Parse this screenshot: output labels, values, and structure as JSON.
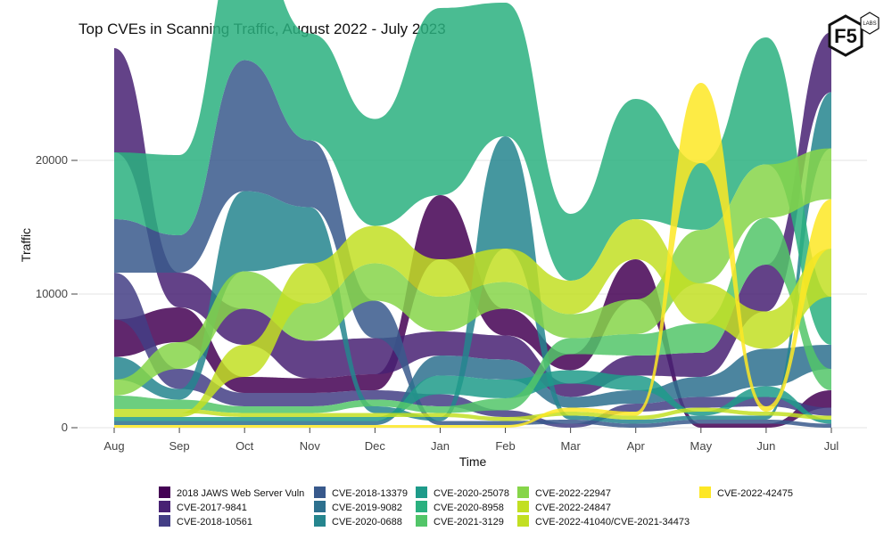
{
  "logo": {
    "brand": "F5",
    "badge": "LABS"
  },
  "chart_data": {
    "type": "area",
    "subtype": "bump-streamgraph",
    "title": "Top CVEs in Scanning Traffic, August 2022 - July 2023",
    "xlabel": "Time",
    "ylabel": "Traffic",
    "categories": [
      "Aug",
      "Sep",
      "Oct",
      "Nov",
      "Dec",
      "Jan",
      "Feb",
      "Mar",
      "Apr",
      "May",
      "Jun",
      "Jul"
    ],
    "ylim": [
      0,
      28000
    ],
    "yticks": [
      0,
      10000,
      20000
    ],
    "ytick_labels": [
      "0",
      "10000",
      "20000"
    ],
    "grid": true,
    "legend_position": "bottom",
    "series": [
      {
        "name": "2018 JAWS Web Server Vuln",
        "color": "#440154",
        "values": [
          2800,
          2600,
          1200,
          1100,
          1200,
          4800,
          2000,
          1200,
          3000,
          300,
          300,
          1300
        ]
      },
      {
        "name": "CVE-2017-9841",
        "color": "#482173",
        "values": [
          7800,
          2600,
          2700,
          2800,
          2700,
          1800,
          1800,
          1000,
          1500,
          1800,
          3500,
          4500
        ]
      },
      {
        "name": "CVE-2018-10561",
        "color": "#433e85",
        "values": [
          3500,
          1500,
          1000,
          1000,
          700,
          900,
          500,
          300,
          600,
          800,
          700,
          600
        ]
      },
      {
        "name": "CVE-2018-13379",
        "color": "#38598c",
        "values": [
          4000,
          2800,
          9800,
          5000,
          2800,
          300,
          300,
          300,
          300,
          300,
          300,
          300
        ]
      },
      {
        "name": "CVE-2019-9082",
        "color": "#2d708e",
        "values": [
          300,
          300,
          300,
          300,
          300,
          1500,
          1500,
          800,
          1000,
          1500,
          2800,
          1800
        ]
      },
      {
        "name": "CVE-2020-0688",
        "color": "#25858e",
        "values": [
          1700,
          800,
          6000,
          4200,
          500,
          300,
          8400,
          300,
          300,
          300,
          300,
          4200
        ]
      },
      {
        "name": "CVE-2020-25078",
        "color": "#1e9b8a",
        "values": [
          300,
          300,
          300,
          300,
          300,
          1400,
          1400,
          1000,
          1100,
          300,
          800,
          300
        ]
      },
      {
        "name": "CVE-2020-8958",
        "color": "#2ab07f",
        "values": [
          5000,
          6000,
          10000,
          8000,
          8000,
          14000,
          10000,
          5000,
          9000,
          5000,
          9500,
          3600
        ]
      },
      {
        "name": "CVE-2021-3129",
        "color": "#52c569",
        "values": [
          1000,
          700,
          500,
          500,
          500,
          500,
          900,
          1200,
          1600,
          2200,
          3500,
          1600
        ]
      },
      {
        "name": "CVE-2022-22947",
        "color": "#86d549",
        "values": [
          1200,
          2000,
          2800,
          2800,
          2800,
          2600,
          2000,
          1800,
          2600,
          4000,
          4000,
          3800
        ]
      },
      {
        "name": "CVE-2022-24847",
        "color": "#c2df23",
        "values": [
          300,
          300,
          2400,
          3000,
          2800,
          2800,
          2500,
          2500,
          3000,
          3000,
          2800,
          3600
        ]
      },
      {
        "name": "CVE-2022-41040/CVE-2021-34473",
        "color": "#c2df23",
        "values": [
          300,
          300,
          300,
          300,
          300,
          300,
          300,
          300,
          300,
          300,
          300,
          300
        ]
      },
      {
        "name": "CVE-2022-42475",
        "color": "#fde725",
        "values": [
          200,
          200,
          200,
          200,
          200,
          200,
          200,
          300,
          300,
          6000,
          400,
          3700
        ]
      }
    ]
  }
}
